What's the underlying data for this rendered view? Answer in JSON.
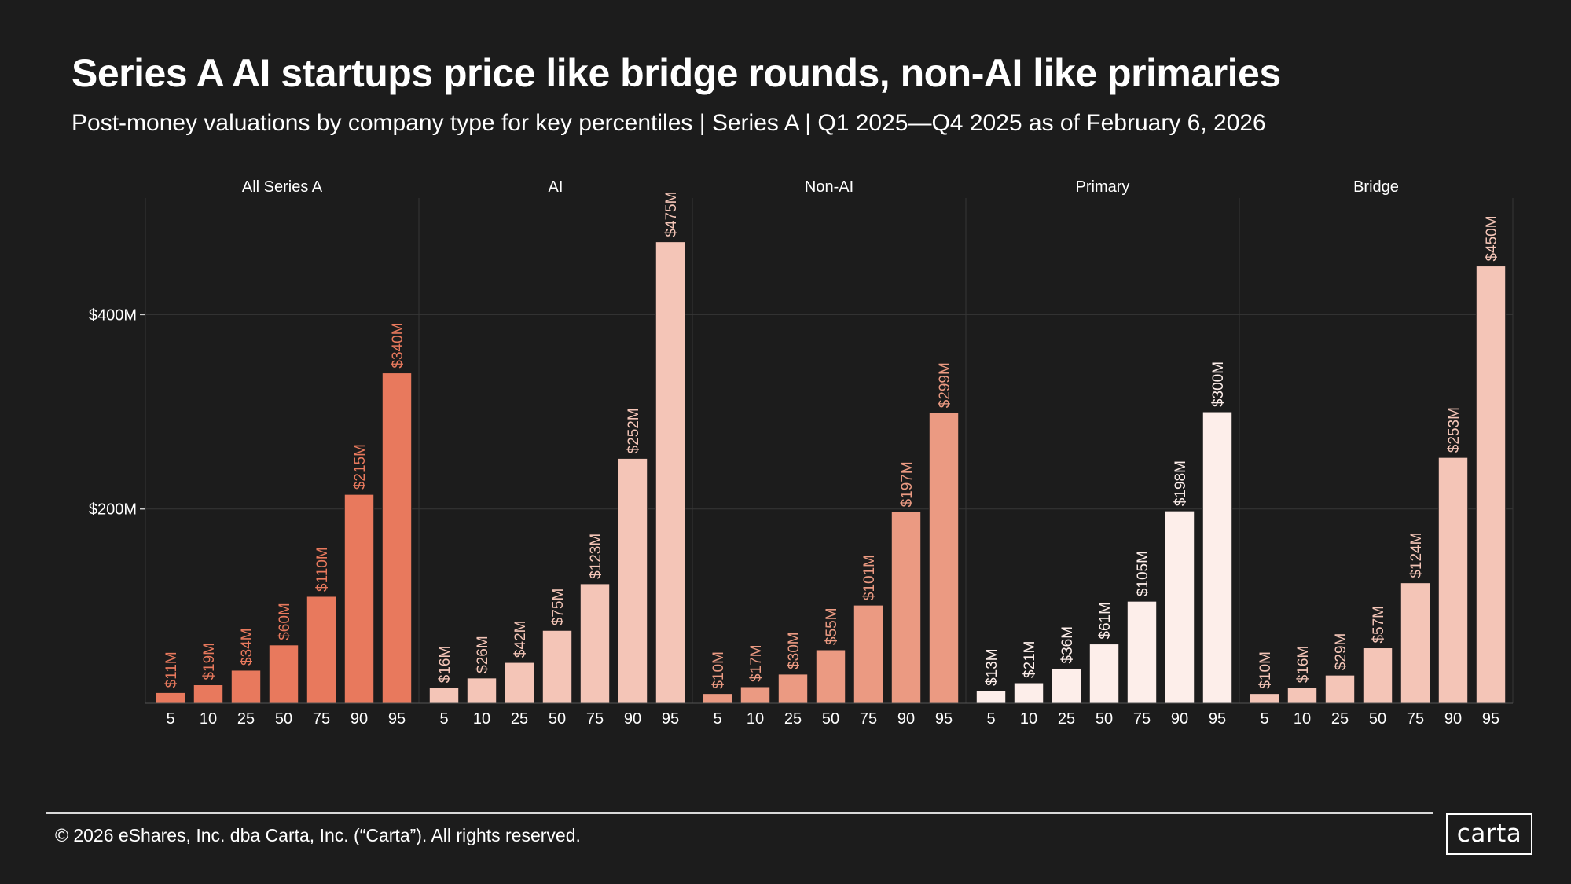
{
  "title": "Series A AI startups price like bridge rounds, non-AI like primaries",
  "subtitle": "Post-money valuations by company type for key percentiles  |  Series A  |  Q1 2025—Q4 2025 as of February 6, 2026",
  "footer": {
    "copyright": "© 2026 eShares, Inc. dba Carta, Inc. (“Carta”). All rights reserved.",
    "logo_text": "carta"
  },
  "colors": {
    "background": "#1c1c1c",
    "grid": "#363636",
    "axis_text": "#ffffff",
    "bar_stroke": "#1c1c1c"
  },
  "chart_data": {
    "type": "bar",
    "layout": "faceted",
    "ylim": [
      0,
      520
    ],
    "yticks": [
      {
        "value": 200,
        "label": "$200M"
      },
      {
        "value": 400,
        "label": "$400M"
      }
    ],
    "xlabel": "",
    "ylabel": "",
    "categories": [
      "5",
      "10",
      "25",
      "50",
      "75",
      "90",
      "95"
    ],
    "series": [
      {
        "name": "All Series A",
        "color": "#e8795d",
        "label_color": "#e8795d",
        "values": [
          11,
          19,
          34,
          60,
          110,
          215,
          340
        ],
        "labels": [
          "$11M",
          "$19M",
          "$34M",
          "$60M",
          "$110M",
          "$215M",
          "$340M"
        ]
      },
      {
        "name": "AI",
        "color": "#f4c5b7",
        "label_color": "#f4c5b7",
        "values": [
          16,
          26,
          42,
          75,
          123,
          252,
          475
        ],
        "labels": [
          "$16M",
          "$26M",
          "$42M",
          "$75M",
          "$123M",
          "$252M",
          "$475M"
        ]
      },
      {
        "name": "Non-AI",
        "color": "#eb9a82",
        "label_color": "#eb9a82",
        "values": [
          10,
          17,
          30,
          55,
          101,
          197,
          299
        ],
        "labels": [
          "$10M",
          "$17M",
          "$30M",
          "$55M",
          "$101M",
          "$197M",
          "$299M"
        ]
      },
      {
        "name": "Primary",
        "color": "#fdeeea",
        "label_color": "#fdeeea",
        "values": [
          13,
          21,
          36,
          61,
          105,
          198,
          300
        ],
        "labels": [
          "$13M",
          "$21M",
          "$36M",
          "$61M",
          "$105M",
          "$198M",
          "$300M"
        ]
      },
      {
        "name": "Bridge",
        "color": "#f4c5b7",
        "label_color": "#f4c5b7",
        "values": [
          10,
          16,
          29,
          57,
          124,
          253,
          450
        ],
        "labels": [
          "$10M",
          "$16M",
          "$29M",
          "$57M",
          "$124M",
          "$253M",
          "$450M"
        ]
      }
    ]
  }
}
